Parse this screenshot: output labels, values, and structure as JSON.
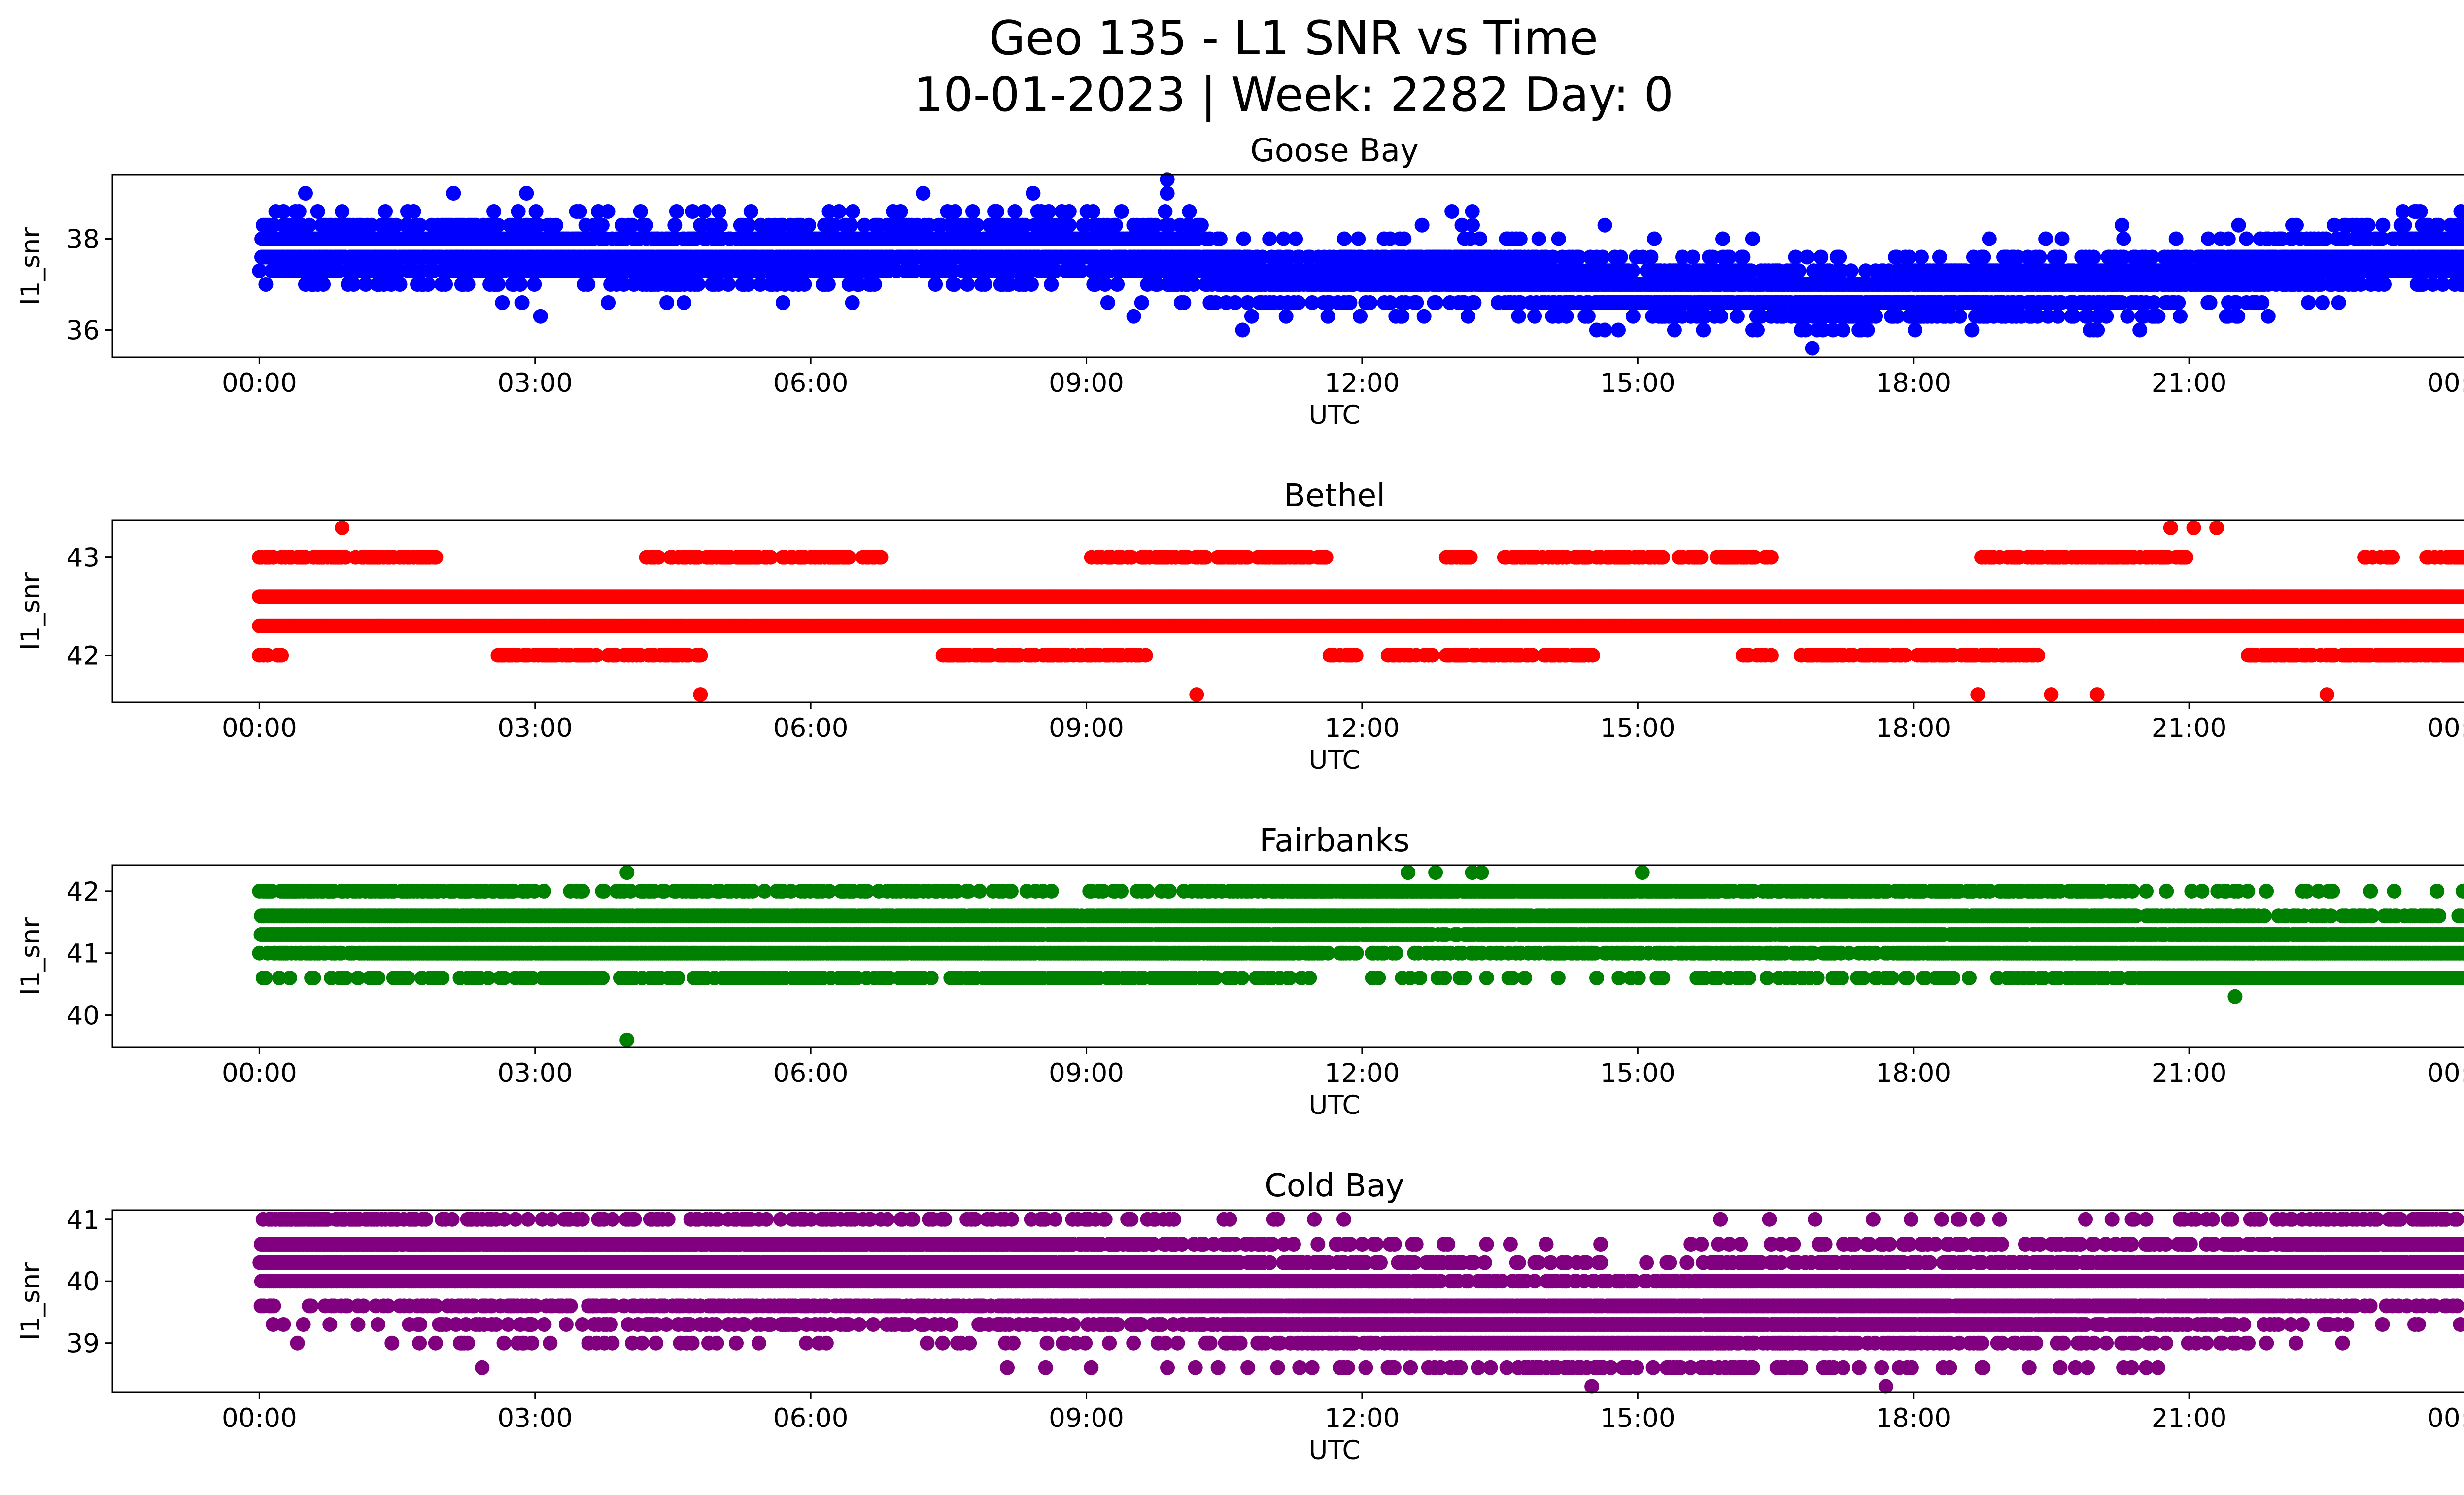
{
  "figure": {
    "title_line1": "Geo 135 - L1 SNR vs Time",
    "title_line2": "10-01-2023 | Week: 2282 Day: 0"
  },
  "chart_data": [
    {
      "type": "scatter",
      "title": "Goose Bay",
      "xlabel": "UTC",
      "ylabel": "l1_snr",
      "color": "#0000ff",
      "xlim_hours": [
        -1.6,
        25.0
      ],
      "ylim": [
        35.4,
        39.4
      ],
      "xticks_hours": [
        0,
        3,
        6,
        9,
        12,
        15,
        18,
        21,
        24
      ],
      "xtick_labels": [
        "00:00",
        "03:00",
        "06:00",
        "09:00",
        "12:00",
        "15:00",
        "18:00",
        "21:00",
        "00:00"
      ],
      "yticks": [
        36,
        38
      ],
      "ytick_labels": [
        "36",
        "38"
      ],
      "levels": [
        36.0,
        36.3,
        36.6,
        37.0,
        37.3,
        37.6,
        38.0,
        38.3,
        38.6,
        39.0
      ],
      "trend_hours": [
        0,
        1,
        2,
        3,
        4,
        5,
        6,
        7,
        8,
        9,
        10,
        10.8,
        11,
        12,
        13,
        14,
        15,
        16,
        17,
        18,
        19,
        20,
        21,
        22,
        23,
        24
      ],
      "trend_values": [
        37.75,
        37.8,
        37.8,
        37.7,
        37.6,
        37.6,
        37.7,
        37.8,
        37.8,
        37.8,
        37.6,
        37.2,
        37.1,
        37.2,
        37.3,
        37.1,
        36.9,
        36.9,
        36.7,
        36.8,
        37.0,
        37.0,
        37.2,
        37.4,
        37.6,
        37.7
      ],
      "outliers": [
        [
          9.88,
          39.3
        ],
        [
          9.88,
          39.0
        ],
        [
          8.42,
          39.0
        ],
        [
          10.7,
          36.0
        ],
        [
          15.4,
          36.0
        ],
        [
          16.9,
          35.6
        ],
        [
          17.5,
          36.0
        ],
        [
          20.0,
          36.0
        ],
        [
          8.0,
          38.6
        ],
        [
          13.2,
          38.6
        ],
        [
          0.9,
          38.6
        ]
      ]
    },
    {
      "type": "scatter",
      "title": "Bethel",
      "xlabel": "UTC",
      "ylabel": "l1_snr",
      "color": "#ff0000",
      "xlim_hours": [
        -1.6,
        25.0
      ],
      "ylim": [
        41.52,
        43.38
      ],
      "xticks_hours": [
        0,
        3,
        6,
        9,
        12,
        15,
        18,
        21,
        24
      ],
      "xtick_labels": [
        "00:00",
        "03:00",
        "06:00",
        "09:00",
        "12:00",
        "15:00",
        "18:00",
        "21:00",
        "00:00"
      ],
      "yticks": [
        42,
        43
      ],
      "ytick_labels": [
        "42",
        "43"
      ],
      "dense_levels": [
        42.3,
        42.6
      ],
      "sparse_levels": [
        42.0,
        43.0
      ],
      "outliers": [
        [
          0.9,
          43.3
        ],
        [
          20.8,
          43.3
        ],
        [
          21.05,
          43.3
        ],
        [
          21.3,
          43.3
        ],
        [
          4.8,
          41.6
        ],
        [
          10.2,
          41.6
        ],
        [
          18.7,
          41.6
        ],
        [
          19.5,
          41.6
        ],
        [
          20.0,
          41.6
        ],
        [
          22.5,
          41.6
        ]
      ]
    },
    {
      "type": "scatter",
      "title": "Fairbanks",
      "xlabel": "UTC",
      "ylabel": "l1_snr",
      "color": "#008000",
      "xlim_hours": [
        -1.6,
        25.0
      ],
      "ylim": [
        39.48,
        42.42
      ],
      "xticks_hours": [
        0,
        3,
        6,
        9,
        12,
        15,
        18,
        21,
        24
      ],
      "xtick_labels": [
        "00:00",
        "03:00",
        "06:00",
        "09:00",
        "12:00",
        "15:00",
        "18:00",
        "21:00",
        "00:00"
      ],
      "yticks": [
        40,
        41,
        42
      ],
      "ytick_labels": [
        "40",
        "41",
        "42"
      ],
      "levels": [
        40.6,
        41.0,
        41.3,
        41.6,
        42.0
      ],
      "trend_hours": [
        0,
        1,
        2,
        3,
        4,
        5,
        6,
        7,
        8,
        9,
        10,
        11,
        11.3,
        12,
        13,
        14,
        15,
        16,
        17,
        18,
        19,
        20,
        20.7,
        21,
        22,
        23,
        24
      ],
      "trend_values": [
        41.5,
        41.5,
        41.4,
        41.3,
        41.3,
        41.3,
        41.3,
        41.3,
        41.2,
        41.1,
        41.2,
        41.4,
        41.6,
        41.75,
        41.8,
        41.7,
        41.6,
        41.5,
        41.5,
        41.5,
        41.4,
        41.3,
        41.0,
        40.9,
        40.85,
        40.9,
        40.95
      ],
      "outliers": [
        [
          4.0,
          39.6
        ],
        [
          4.0,
          42.3
        ],
        [
          12.5,
          42.3
        ],
        [
          12.8,
          42.3
        ],
        [
          13.2,
          42.3
        ],
        [
          13.3,
          42.3
        ],
        [
          15.05,
          42.3
        ],
        [
          21.5,
          40.3
        ]
      ]
    },
    {
      "type": "scatter",
      "title": "Cold Bay",
      "xlabel": "UTC",
      "ylabel": "l1_snr",
      "color": "#800080",
      "xlim_hours": [
        -1.6,
        25.0
      ],
      "ylim": [
        38.2,
        41.15
      ],
      "xticks_hours": [
        0,
        3,
        6,
        9,
        12,
        15,
        18,
        21,
        24
      ],
      "xtick_labels": [
        "00:00",
        "03:00",
        "06:00",
        "09:00",
        "12:00",
        "15:00",
        "18:00",
        "21:00",
        "00:00"
      ],
      "yticks": [
        39,
        40,
        41
      ],
      "ytick_labels": [
        "39",
        "40",
        "41"
      ],
      "levels": [
        38.6,
        39.0,
        39.3,
        39.6,
        40.0,
        40.3,
        40.6,
        41.0
      ],
      "trend_hours": [
        0,
        1,
        2,
        3,
        4,
        5,
        6,
        7,
        8,
        9,
        10,
        11,
        12,
        13,
        14,
        15,
        16,
        17,
        18,
        19,
        20,
        21,
        22,
        23,
        24
      ],
      "trend_values": [
        40.45,
        40.45,
        40.2,
        40.15,
        40.15,
        40.15,
        40.15,
        40.15,
        40.15,
        40.1,
        39.9,
        39.75,
        39.6,
        39.4,
        39.3,
        39.4,
        39.5,
        39.6,
        39.7,
        39.75,
        39.8,
        39.9,
        40.1,
        40.35,
        40.45
      ],
      "outliers": [
        [
          14.5,
          38.3
        ],
        [
          17.7,
          38.3
        ],
        [
          0.35,
          41.0
        ],
        [
          0.7,
          41.0
        ],
        [
          0.9,
          41.0
        ],
        [
          1.5,
          41.0
        ],
        [
          8.4,
          41.0
        ],
        [
          8.5,
          41.0
        ],
        [
          8.85,
          41.0
        ],
        [
          23.3,
          41.0
        ],
        [
          23.6,
          41.0
        ]
      ]
    }
  ]
}
